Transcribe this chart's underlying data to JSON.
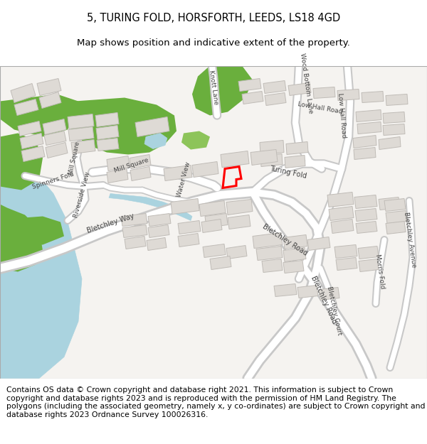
{
  "title_line1": "5, TURING FOLD, HORSFORTH, LEEDS, LS18 4GD",
  "title_line2": "Map shows position and indicative extent of the property.",
  "footer_text": "Contains OS data © Crown copyright and database right 2021. This information is subject to Crown copyright and database rights 2023 and is reproduced with the permission of HM Land Registry. The polygons (including the associated geometry, namely x, y co-ordinates) are subject to Crown copyright and database rights 2023 Ordnance Survey 100026316.",
  "bg_color": "#f5f3f0",
  "road_fill": "#ffffff",
  "road_edge": "#c8c8c8",
  "building_fill": "#dedad5",
  "building_edge": "#c0bcb7",
  "green_fill": "#6aaf3d",
  "green_fill2": "#8dc45a",
  "water_fill": "#aad3df",
  "water_edge": "#aad3df",
  "highlight_color": "#ff0000",
  "fig_bg": "#ffffff"
}
